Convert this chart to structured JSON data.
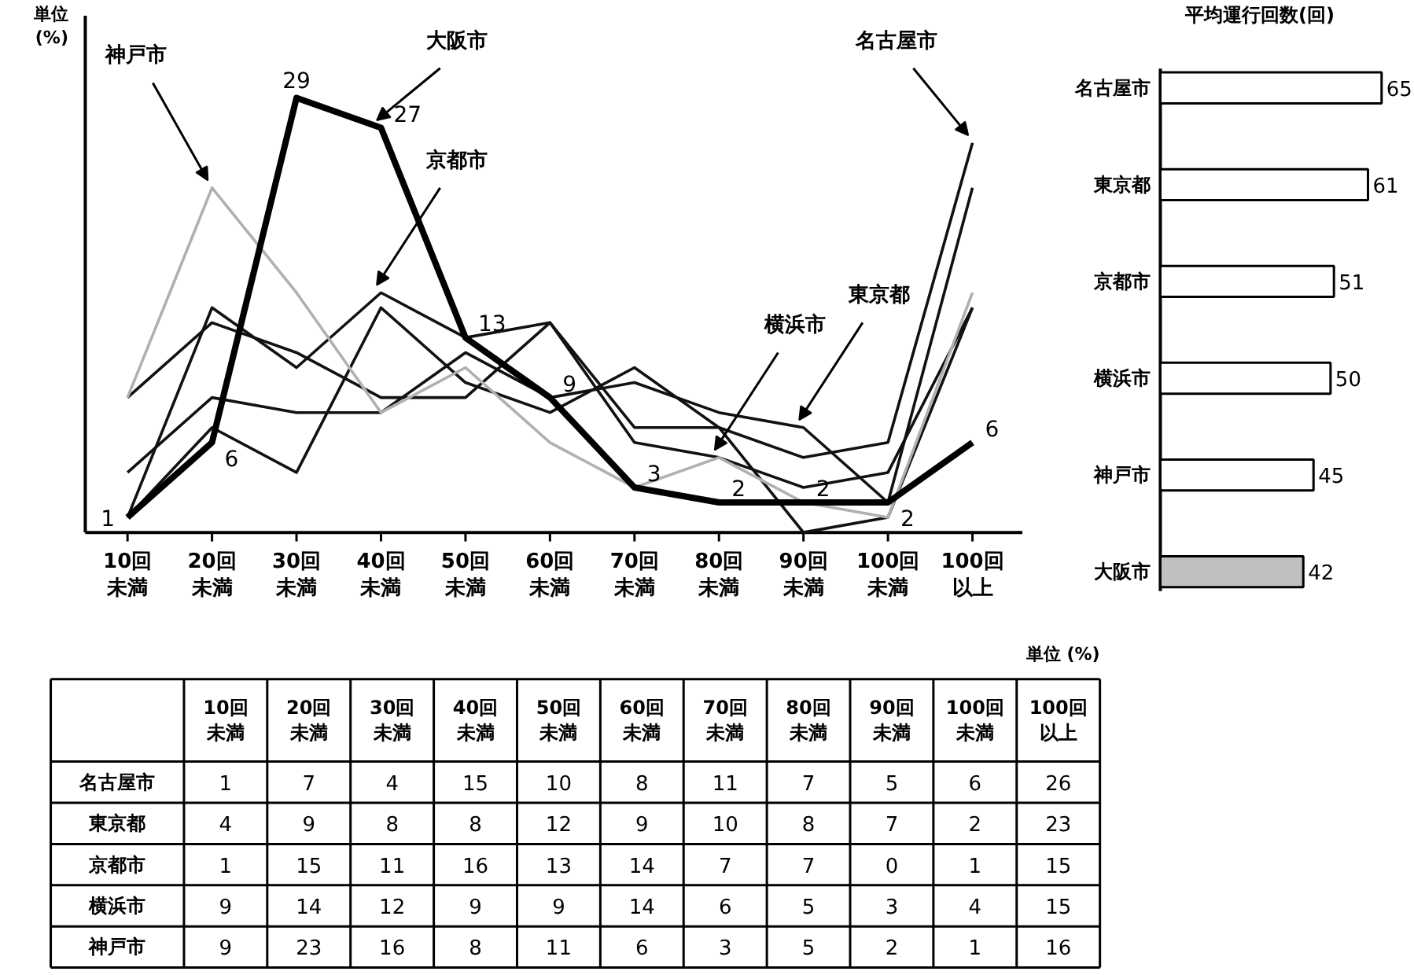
{
  "chart_data": [
    {
      "type": "line",
      "ylabel": "単位\n(%)",
      "tick_labels": "x",
      "grid": false,
      "categories": [
        "10回未満",
        "20回未満",
        "30回未満",
        "40回未満",
        "50回未満",
        "60回未満",
        "70回未満",
        "80回未満",
        "90回未満",
        "100回未満",
        "100回以上"
      ],
      "series": [
        {
          "color": "#111111",
          "values": [
            1,
            7,
            4,
            15,
            10,
            8,
            11,
            7,
            5,
            6,
            26
          ]
        },
        {
          "color": "#111111",
          "values": [
            4,
            9,
            8,
            8,
            12,
            9,
            10,
            8,
            7,
            2,
            23
          ]
        },
        {
          "color": "#111111",
          "values": [
            1,
            15,
            11,
            16,
            13,
            14,
            7,
            7,
            0,
            1,
            15
          ]
        },
        {
          "color": "#111111",
          "values": [
            9,
            14,
            12,
            9,
            9,
            14,
            6,
            5,
            3,
            4,
            15
          ]
        },
        {
          "color": "#b0b0b0",
          "values": [
            9,
            23,
            16,
            8,
            11,
            6,
            3,
            5,
            2,
            1,
            16
          ]
        },
        {
          "color": "#000000",
          "values": [
            1,
            6,
            29,
            27,
            13,
            9,
            3,
            2,
            2,
            2,
            6
          ],
          "value_labels": [
            "1",
            "6",
            "29",
            "27",
            "13",
            "9",
            "3",
            "2",
            "2",
            "2",
            "6"
          ]
        }
      ],
      "annotations": [
        {
          "text": "神戸市",
          "x": "20回未満",
          "y": 23
        },
        {
          "text": "大阪市",
          "x": "40回未満",
          "y": 27
        },
        {
          "text": "京都市",
          "x": "40回未満",
          "y": 16
        },
        {
          "text": "横浜市",
          "x": "80回未満",
          "y": 5
        },
        {
          "text": "東京都",
          "x": "90回未満",
          "y": 7
        },
        {
          "text": "名古屋市",
          "x": "100回以上",
          "y": 26
        }
      ]
    },
    {
      "type": "bar",
      "orientation": "horizontal",
      "title": "平均運行回数(回)",
      "tick_labels": "y",
      "data_labels": true,
      "categories": [
        "名古屋市",
        "東京都",
        "京都市",
        "横浜市",
        "神戸市",
        "大阪市"
      ],
      "values": [
        65,
        61,
        51,
        50,
        45,
        42
      ],
      "colors": [
        "#ffffff",
        "#ffffff",
        "#ffffff",
        "#ffffff",
        "#ffffff",
        "#c0c0c0"
      ]
    },
    {
      "type": "heatmap",
      "annotations": [
        "単位 (%)"
      ],
      "data_labels": true,
      "categories": [
        "10回未満",
        "20回未満",
        "30回未満",
        "40回未満",
        "50回未満",
        "60回未満",
        "70回未満",
        "80回未満",
        "90回未満",
        "100回未満",
        "100回以上"
      ],
      "y_categories": [
        "名古屋市",
        "東京都",
        "京都市",
        "横浜市",
        "神戸市"
      ],
      "cells": [
        [
          1,
          7,
          4,
          15,
          10,
          8,
          11,
          7,
          5,
          6,
          26
        ],
        [
          4,
          9,
          8,
          8,
          12,
          9,
          10,
          8,
          7,
          2,
          23
        ],
        [
          1,
          15,
          11,
          16,
          13,
          14,
          7,
          7,
          0,
          1,
          15
        ],
        [
          9,
          14,
          12,
          9,
          9,
          14,
          6,
          5,
          3,
          4,
          15
        ],
        [
          9,
          23,
          16,
          8,
          11,
          6,
          3,
          5,
          2,
          1,
          16
        ]
      ]
    }
  ]
}
